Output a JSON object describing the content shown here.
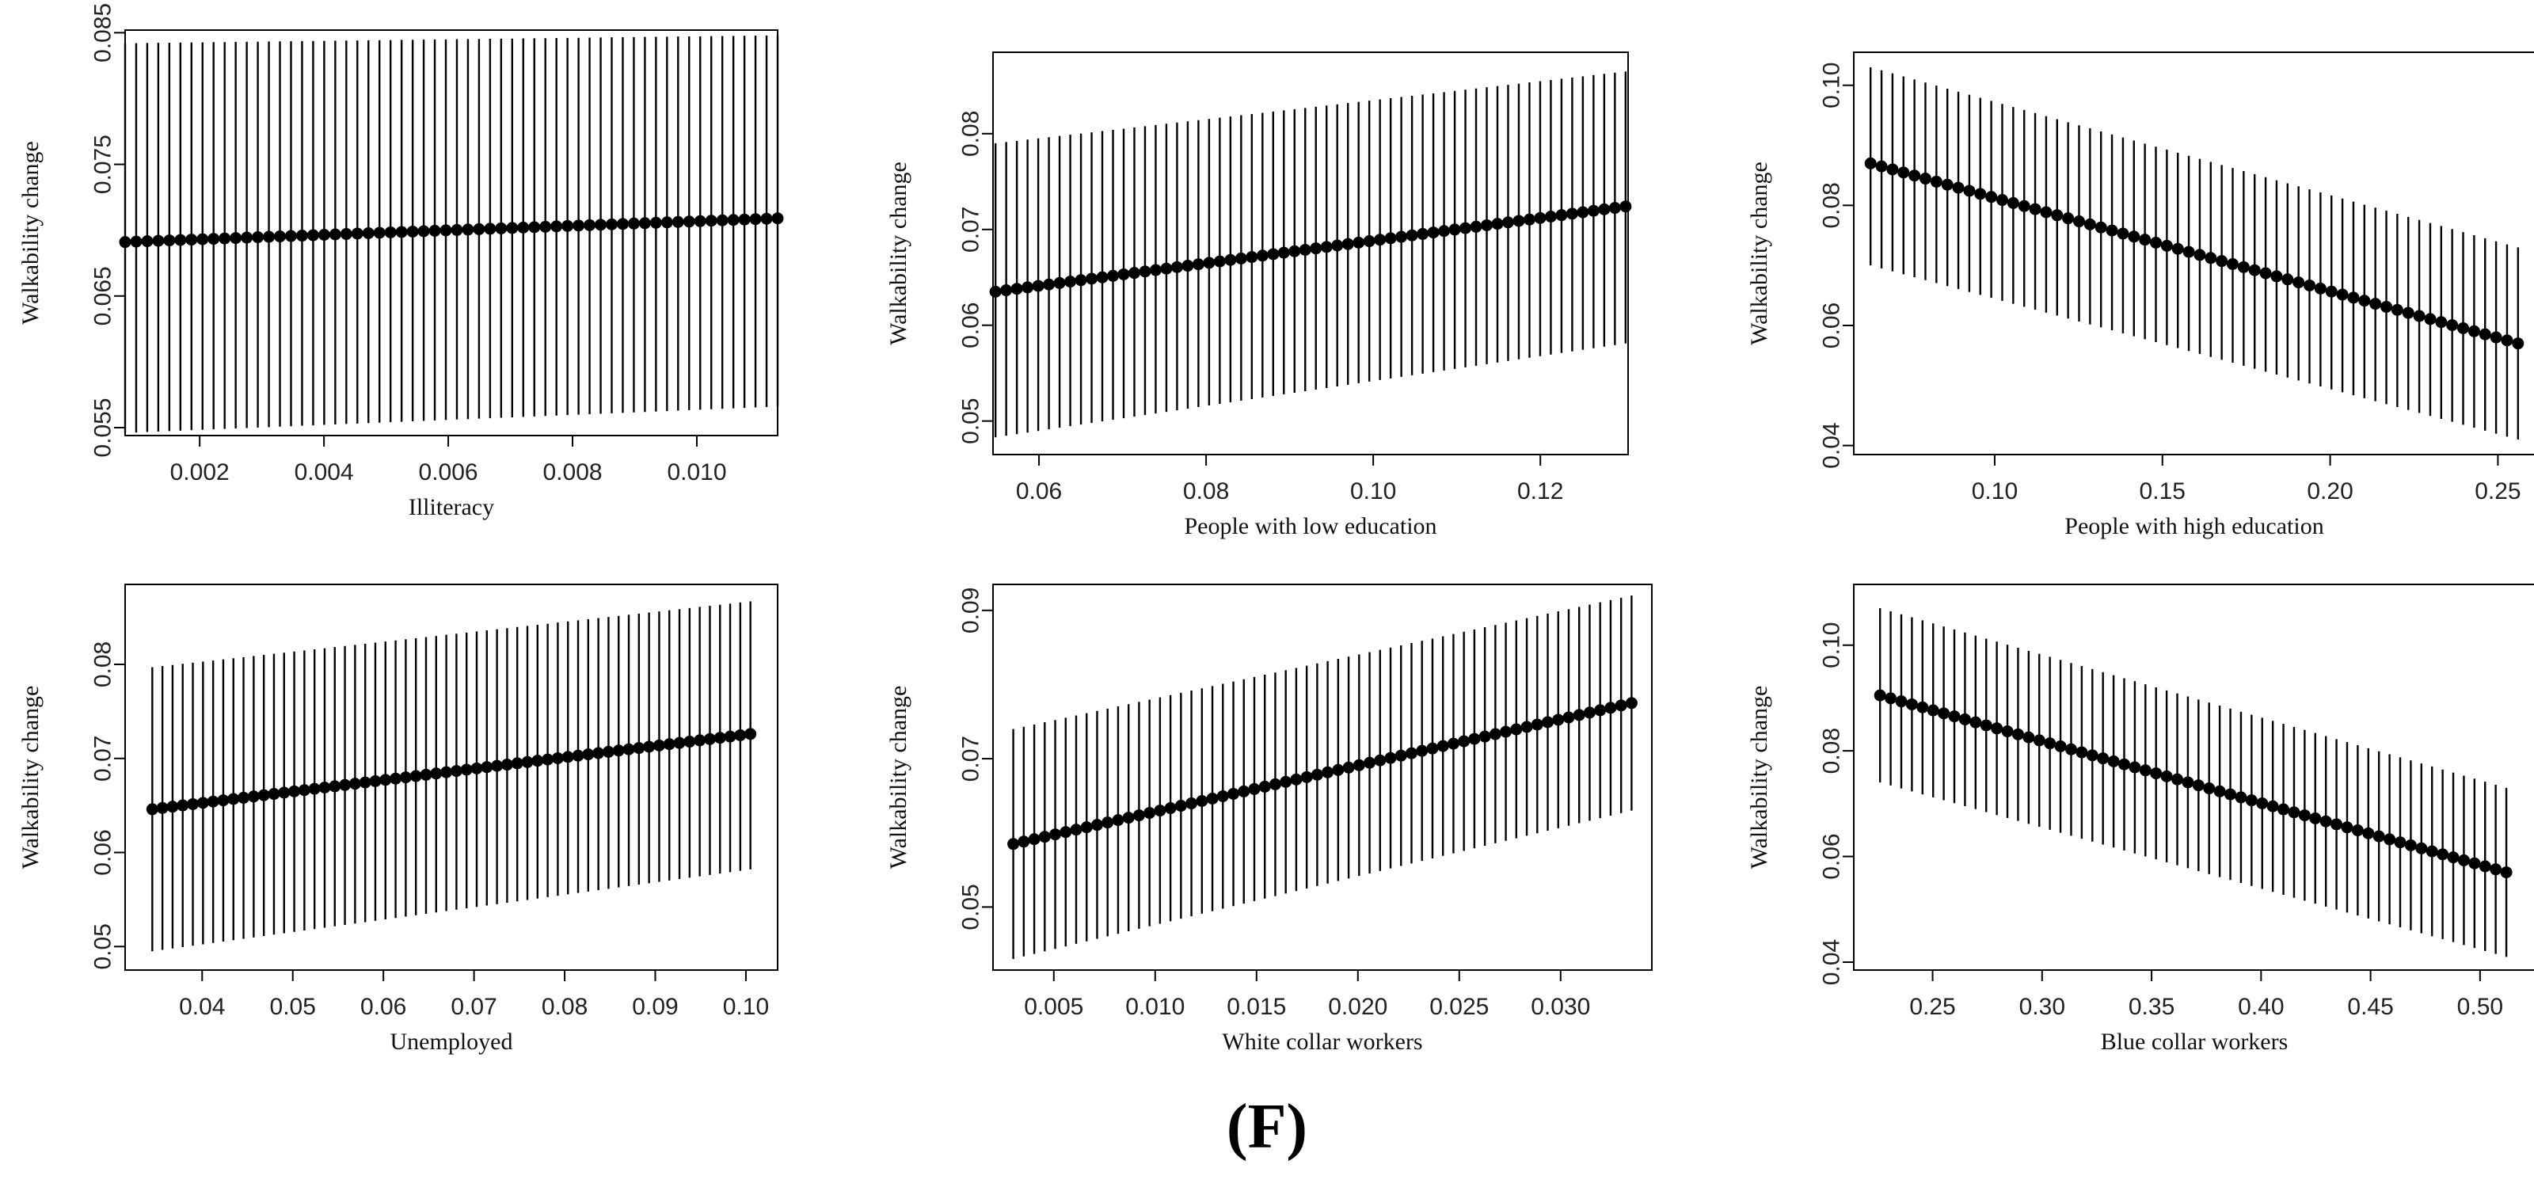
{
  "figure_label": "(F)",
  "chart_data": [
    {
      "type": "scatter",
      "title": "",
      "xlabel": "Illiteracy",
      "ylabel": "Walkability change",
      "xlim": [
        0.0008,
        0.0113
      ],
      "ylim": [
        0.0544,
        0.0852
      ],
      "xticks": [
        0.002,
        0.004,
        0.006,
        0.008,
        0.01
      ],
      "xtick_labels": [
        "0.002",
        "0.004",
        "0.006",
        "0.008",
        "0.010"
      ],
      "yticks": [
        0.055,
        0.065,
        0.075,
        0.085
      ],
      "ytick_labels": [
        "0.055",
        "0.065",
        "0.075",
        "0.085"
      ],
      "grid": false,
      "legend": "none",
      "n_points": 60,
      "x_range": [
        0.0008,
        0.0113
      ],
      "estimate": [
        0.0691,
        0.0709
      ],
      "ci_lower": [
        0.0546,
        0.0566
      ],
      "ci_upper": [
        0.0842,
        0.0848
      ]
    },
    {
      "type": "scatter",
      "title": "",
      "xlabel": "People with low education",
      "ylabel": "Walkability change",
      "xlim": [
        0.0545,
        0.1305
      ],
      "ylim": [
        0.0465,
        0.0885
      ],
      "xticks": [
        0.06,
        0.08,
        0.1,
        0.12
      ],
      "xtick_labels": [
        "0.06",
        "0.08",
        "0.10",
        "0.12"
      ],
      "yticks": [
        0.05,
        0.06,
        0.07,
        0.08
      ],
      "ytick_labels": [
        "0.05",
        "0.06",
        "0.07",
        "0.08"
      ],
      "grid": false,
      "legend": "none",
      "n_points": 60,
      "x_range": [
        0.0548,
        0.1302
      ],
      "estimate": [
        0.0635,
        0.0724
      ],
      "ci_lower": [
        0.0483,
        0.0581
      ],
      "ci_upper": [
        0.079,
        0.0865
      ]
    },
    {
      "type": "scatter",
      "title": "",
      "xlabel": "People with high education",
      "ylabel": "Walkability change",
      "xlim": [
        0.058,
        0.261
      ],
      "ylim": [
        0.0385,
        0.1055
      ],
      "xticks": [
        0.1,
        0.15,
        0.2,
        0.25
      ],
      "xtick_labels": [
        "0.10",
        "0.15",
        "0.20",
        "0.25"
      ],
      "yticks": [
        0.04,
        0.06,
        0.08,
        0.1
      ],
      "ytick_labels": [
        "0.04",
        "0.06",
        "0.08",
        "0.10"
      ],
      "grid": false,
      "legend": "none",
      "n_points": 60,
      "x_range": [
        0.063,
        0.256
      ],
      "estimate": [
        0.087,
        0.057
      ],
      "ci_lower": [
        0.07,
        0.041
      ],
      "ci_upper": [
        0.103,
        0.073
      ]
    },
    {
      "type": "scatter",
      "title": "",
      "xlabel": "Unemployed",
      "ylabel": "Walkability change",
      "xlim": [
        0.0315,
        0.1035
      ],
      "ylim": [
        0.0475,
        0.0885
      ],
      "xticks": [
        0.04,
        0.05,
        0.06,
        0.07,
        0.08,
        0.09,
        0.1
      ],
      "xtick_labels": [
        "0.04",
        "0.05",
        "0.06",
        "0.07",
        "0.08",
        "0.09",
        "0.10"
      ],
      "yticks": [
        0.05,
        0.06,
        0.07,
        0.08
      ],
      "ytick_labels": [
        "0.05",
        "0.06",
        "0.07",
        "0.08"
      ],
      "grid": false,
      "legend": "none",
      "n_points": 60,
      "x_range": [
        0.0345,
        0.1005
      ],
      "estimate": [
        0.0646,
        0.0726
      ],
      "ci_lower": [
        0.0495,
        0.0582
      ],
      "ci_upper": [
        0.0797,
        0.0867
      ]
    },
    {
      "type": "scatter",
      "title": "",
      "xlabel": "White collar workers",
      "ylabel": "Walkability change",
      "xlim": [
        0.002,
        0.0345
      ],
      "ylim": [
        0.0415,
        0.0935
      ],
      "xticks": [
        0.005,
        0.01,
        0.015,
        0.02,
        0.025,
        0.03
      ],
      "xtick_labels": [
        "0.005",
        "0.010",
        "0.015",
        "0.020",
        "0.025",
        "0.030"
      ],
      "yticks": [
        0.05,
        0.07,
        0.09
      ],
      "ytick_labels": [
        "0.05",
        "0.07",
        "0.09"
      ],
      "grid": false,
      "legend": "none",
      "n_points": 60,
      "x_range": [
        0.003,
        0.0335
      ],
      "estimate": [
        0.0585,
        0.0775
      ],
      "ci_lower": [
        0.043,
        0.063
      ],
      "ci_upper": [
        0.074,
        0.092
      ]
    },
    {
      "type": "scatter",
      "title": "",
      "xlabel": "Blue collar workers",
      "ylabel": "Walkability change",
      "xlim": [
        0.214,
        0.525
      ],
      "ylim": [
        0.0385,
        0.1115
      ],
      "xticks": [
        0.25,
        0.3,
        0.35,
        0.4,
        0.45,
        0.5
      ],
      "xtick_labels": [
        "0.25",
        "0.30",
        "0.35",
        "0.40",
        "0.45",
        "0.50"
      ],
      "yticks": [
        0.04,
        0.06,
        0.08,
        0.1
      ],
      "ytick_labels": [
        "0.04",
        "0.06",
        "0.08",
        "0.10"
      ],
      "grid": false,
      "legend": "none",
      "n_points": 60,
      "x_range": [
        0.226,
        0.512
      ],
      "estimate": [
        0.0905,
        0.057
      ],
      "ci_lower": [
        0.074,
        0.041
      ],
      "ci_upper": [
        0.107,
        0.073
      ]
    }
  ]
}
